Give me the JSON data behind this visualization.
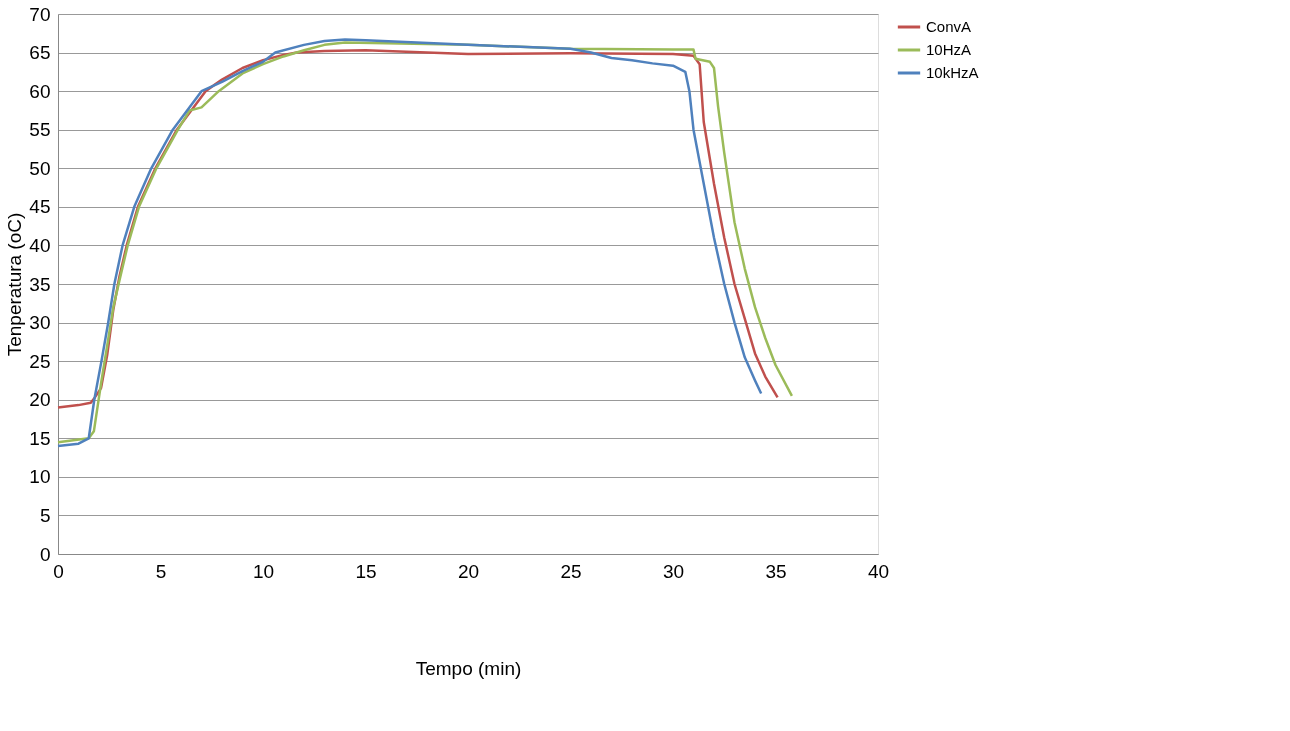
{
  "chart_data": {
    "type": "line",
    "xlabel": "Tempo (min)",
    "ylabel": "Tenperatura (oC)",
    "xlim": [
      0,
      40
    ],
    "xticks": [
      0,
      5,
      10,
      15,
      20,
      25,
      30,
      35,
      40
    ],
    "ylim": [
      0,
      70
    ],
    "yticks": [
      0,
      5,
      10,
      15,
      20,
      25,
      30,
      35,
      40,
      45,
      50,
      55,
      60,
      65,
      70
    ],
    "grid": "y",
    "legend": "right",
    "marker": "none",
    "line_style": "solid",
    "series": [
      {
        "name": "ConvA",
        "color": "#c0504d",
        "x": [
          0,
          1,
          1.6,
          1.8,
          2.1,
          2.4,
          2.7,
          3,
          3.35,
          3.9,
          4.75,
          5.8,
          7.2,
          8,
          9,
          10,
          11,
          11.65,
          13,
          15,
          20,
          25,
          30,
          31,
          31.3,
          31.5,
          32,
          32.5,
          33,
          33.5,
          34,
          34.5,
          35.1
        ],
        "values": [
          19,
          19.3,
          19.6,
          20.3,
          21.5,
          25.8,
          31.7,
          36,
          40,
          45,
          50,
          55,
          60,
          61.5,
          63,
          64,
          64.7,
          65,
          65.2,
          65.3,
          64.8,
          64.9,
          64.8,
          64.6,
          63.5,
          56,
          48,
          41,
          35,
          30.5,
          26,
          23,
          20.3
        ]
      },
      {
        "name": "10HzA",
        "color": "#9bbb59",
        "x": [
          0,
          1.5,
          1.75,
          2.1,
          2.4,
          2.7,
          3,
          3.4,
          3.95,
          4.8,
          5.85,
          6.42,
          7,
          7.84,
          9,
          10,
          11,
          12,
          13,
          14,
          20,
          25,
          30,
          31,
          31.1,
          31.8,
          32,
          32.2,
          32.5,
          33,
          33.5,
          34,
          34.5,
          35,
          35.8
        ],
        "values": [
          14.5,
          15,
          15.9,
          22.1,
          27,
          32,
          35.5,
          40,
          45,
          50,
          55,
          57.5,
          57.9,
          60,
          62.3,
          63.5,
          64.5,
          65.3,
          66,
          66.3,
          66,
          65.5,
          65.4,
          65.4,
          64.2,
          63.8,
          63,
          58,
          52,
          43,
          37,
          32,
          28,
          24.5,
          20.5
        ]
      },
      {
        "name": "10kHzA",
        "color": "#4f81bd",
        "x": [
          0,
          1,
          1.5,
          1.77,
          2.12,
          2.45,
          2.75,
          3.15,
          3.72,
          4.55,
          5.6,
          7,
          8,
          9,
          10,
          10.6,
          12,
          13,
          14,
          15,
          20,
          25,
          26,
          27,
          28,
          29,
          30,
          30.6,
          30.8,
          31,
          31.5,
          32,
          32.5,
          33,
          33.5,
          34,
          34.3
        ],
        "values": [
          14,
          14.3,
          15,
          20,
          25,
          30,
          35,
          40,
          45,
          50,
          55,
          60,
          61.2,
          62.6,
          63.8,
          65,
          66,
          66.5,
          66.7,
          66.6,
          66,
          65.5,
          65,
          64.3,
          64,
          63.6,
          63.3,
          62.5,
          60,
          55,
          48,
          41,
          35,
          30,
          25.5,
          22.5,
          20.8
        ]
      }
    ]
  }
}
